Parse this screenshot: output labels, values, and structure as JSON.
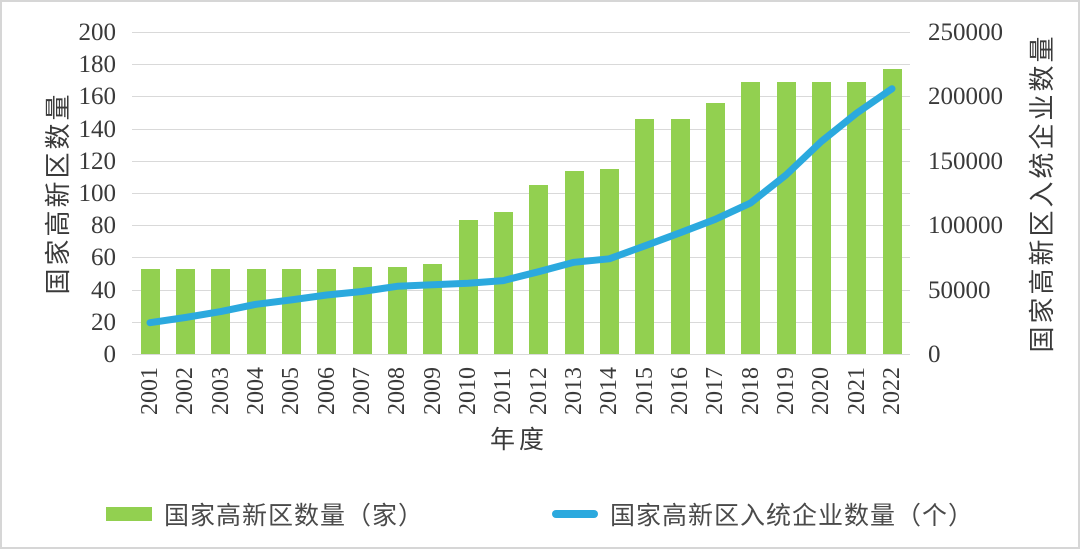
{
  "chart_data": {
    "type": "bar",
    "combo": "bar+line, dual y-axes",
    "categories": [
      "2001",
      "2002",
      "2003",
      "2004",
      "2005",
      "2006",
      "2007",
      "2008",
      "2009",
      "2010",
      "2011",
      "2012",
      "2013",
      "2014",
      "2015",
      "2016",
      "2017",
      "2018",
      "2019",
      "2020",
      "2021",
      "2022"
    ],
    "series": [
      {
        "name": "国家高新区数量（家）",
        "type": "bar",
        "axis": "left",
        "color": "#92d050",
        "values": [
          53,
          53,
          53,
          53,
          53,
          53,
          54,
          54,
          56,
          83,
          88,
          105,
          114,
          115,
          146,
          146,
          156,
          169,
          169,
          169,
          169,
          177
        ]
      },
      {
        "name": "国家高新区入统企业数量（个）",
        "type": "line",
        "axis": "right",
        "color": "#2ba9de",
        "values": [
          24300,
          28300,
          32900,
          38600,
          42000,
          45800,
          48500,
          52600,
          53700,
          54900,
          57000,
          63900,
          71200,
          73900,
          83900,
          94100,
          104600,
          117300,
          139000,
          165000,
          187000,
          206000
        ]
      }
    ],
    "left_axis": {
      "title": "国家高新区数量",
      "min": 0,
      "max": 200,
      "tick_step": 20,
      "ticks": [
        200,
        180,
        160,
        140,
        120,
        100,
        80,
        60,
        40,
        20,
        0
      ]
    },
    "right_axis": {
      "title": "国家高新区入统企业数量",
      "min": 0,
      "max": 250000,
      "tick_step": 50000,
      "ticks": [
        250000,
        200000,
        150000,
        100000,
        50000,
        0
      ]
    },
    "x_axis": {
      "title": "年度"
    },
    "grid": {
      "on": true,
      "color": "#d9d9d9",
      "left_axis_step": 20
    },
    "legend": {
      "position": "bottom"
    }
  },
  "colors": {
    "text": "#3a3a3a",
    "background": "#ffffff",
    "figure_border": "#d6d6d6"
  }
}
